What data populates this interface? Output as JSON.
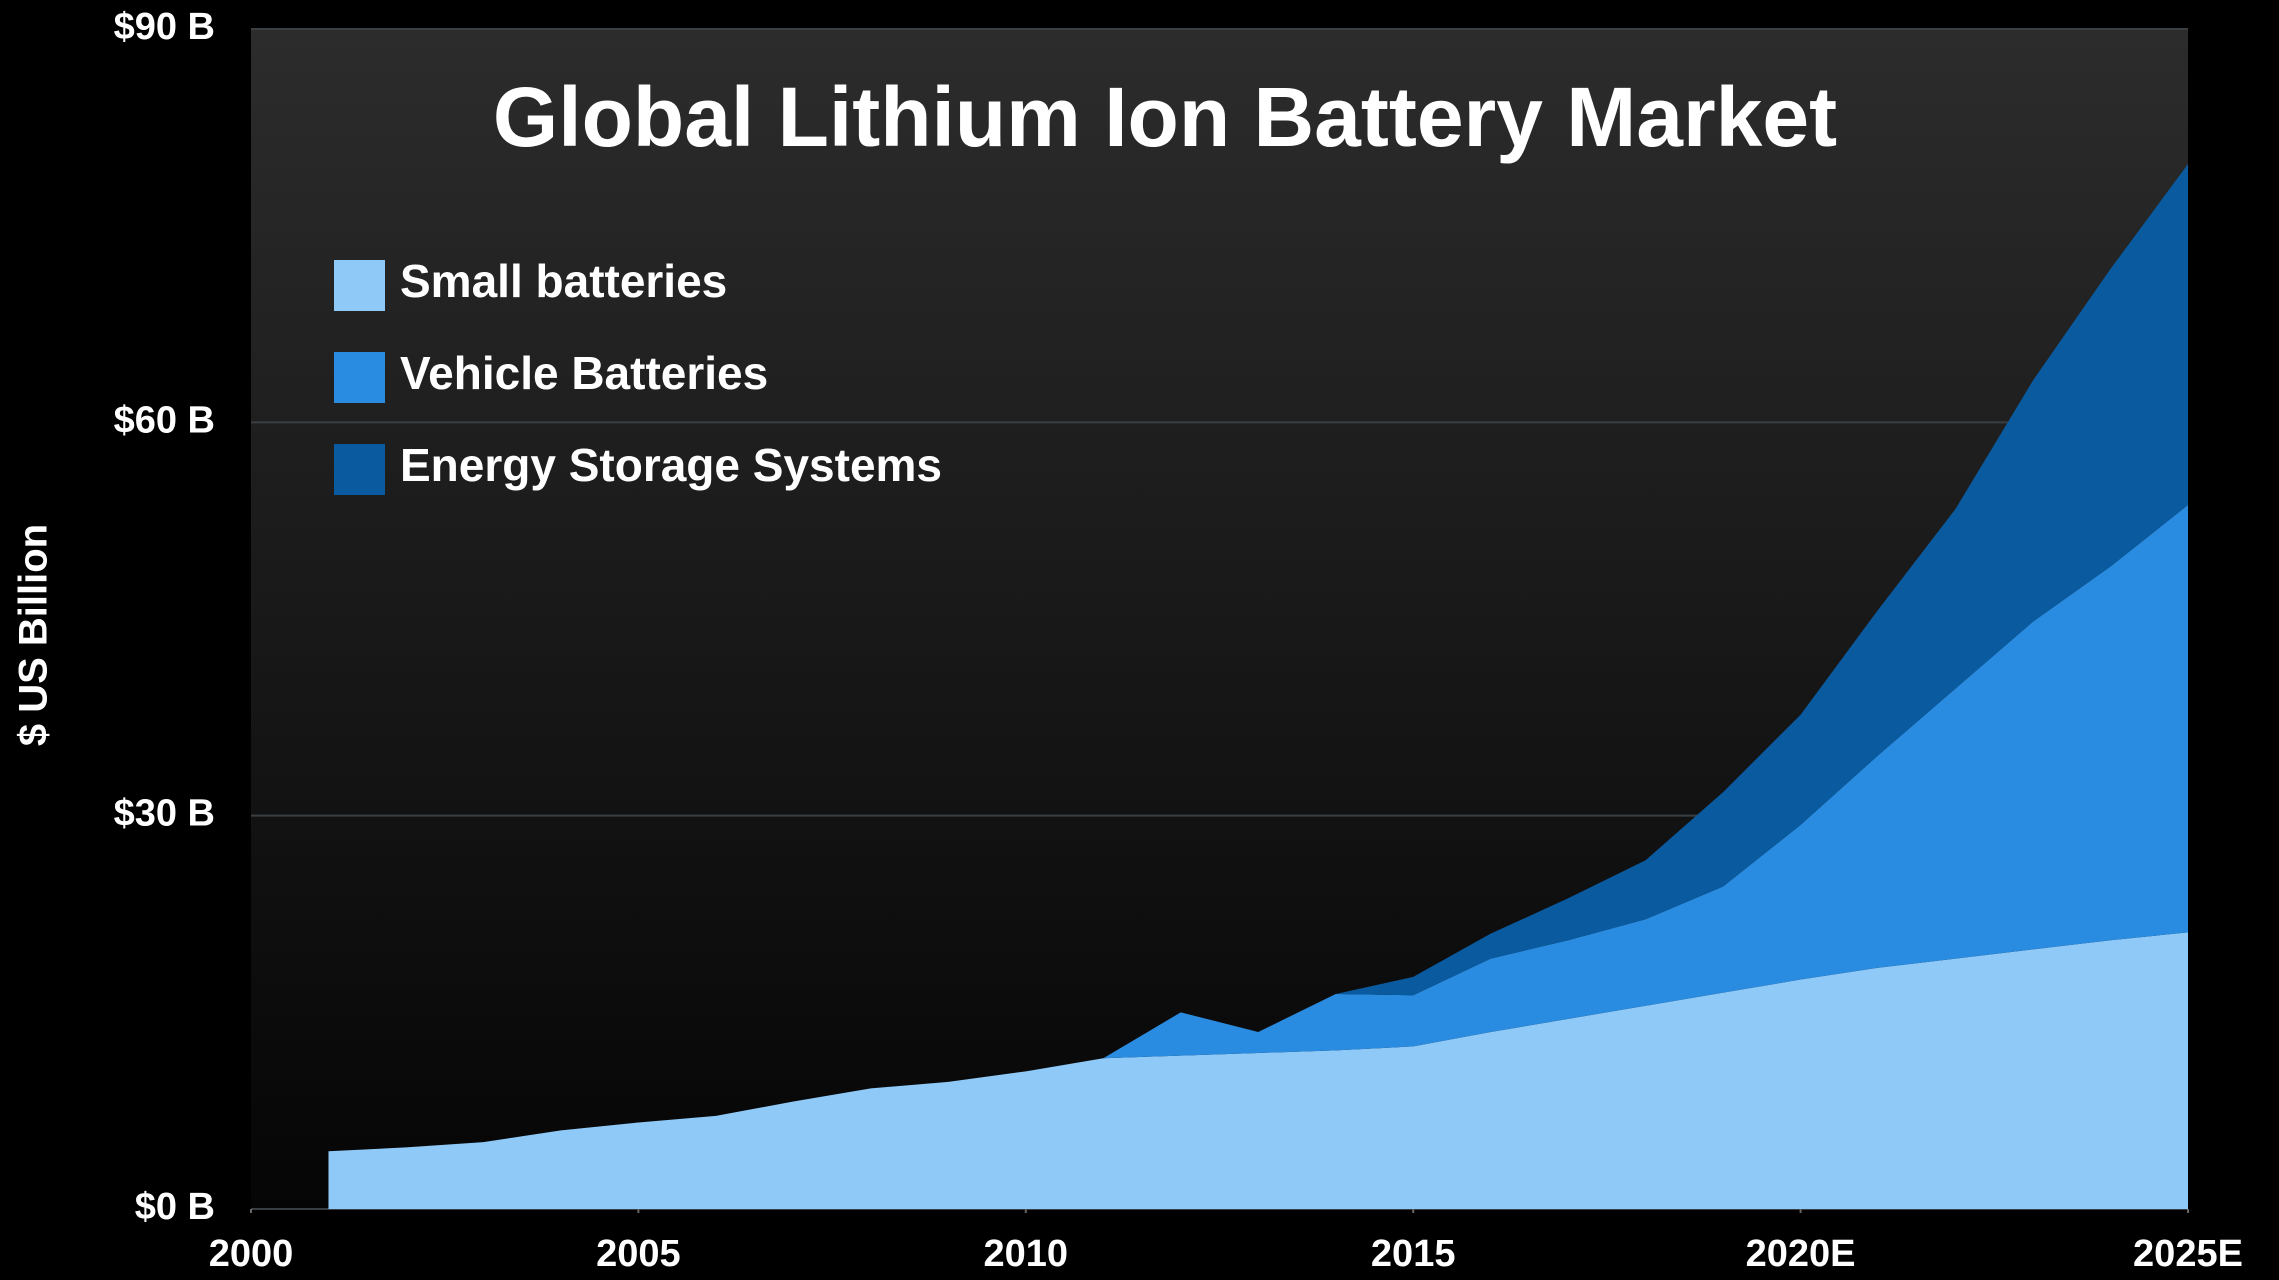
{
  "chart_data": {
    "type": "stacked_area",
    "title": "Global Lithium Ion Battery Market",
    "ylabel": "$ US Billion",
    "x": [
      2001,
      2002,
      2003,
      2004,
      2005,
      2006,
      2007,
      2008,
      2009,
      2010,
      2011,
      2012,
      2013,
      2014,
      2015,
      2016,
      2017,
      2018,
      2019,
      2020,
      2021,
      2022,
      2023,
      2024,
      2025
    ],
    "series": [
      {
        "name": "Small batteries",
        "color": "#8ec9f8",
        "values": [
          4.4,
          4.7,
          5.1,
          6.0,
          6.6,
          7.1,
          8.2,
          9.2,
          9.7,
          10.5,
          11.5,
          11.7,
          11.9,
          12.1,
          12.4,
          13.5,
          14.5,
          15.5,
          16.5,
          17.5,
          18.4,
          19.1,
          19.8,
          20.5,
          21.1
        ]
      },
      {
        "name": "Vehicle Batteries",
        "color": "#2a8ce0",
        "values": [
          0,
          0,
          0,
          0,
          0,
          0,
          0,
          0,
          0,
          0,
          0,
          3.3,
          1.6,
          4.3,
          3.9,
          5.6,
          6.0,
          6.6,
          8.1,
          11.8,
          16.2,
          20.6,
          25.0,
          28.5,
          32.6
        ]
      },
      {
        "name": "Energy Storage Systems",
        "color": "#0a5aa0",
        "values": [
          0,
          0,
          0,
          0,
          0,
          0,
          0,
          0,
          0,
          0,
          0,
          0,
          0,
          0,
          1.4,
          1.9,
          3.2,
          4.5,
          7.2,
          8.4,
          11.1,
          13.7,
          18.4,
          22.7,
          26.0
        ]
      }
    ],
    "xlim": [
      2000,
      2025
    ],
    "xticks": [
      2000,
      2005,
      2010,
      2015,
      {
        "value": 2020,
        "label": "2020E"
      },
      {
        "value": 2025,
        "label": "2025E"
      }
    ],
    "ylim": [
      0,
      90
    ],
    "yticks": [
      {
        "value": 0,
        "label": "$0 B"
      },
      {
        "value": 30,
        "label": "$30 B"
      },
      {
        "value": 60,
        "label": "$60 B"
      },
      {
        "value": 90,
        "label": "$90 B"
      }
    ],
    "grid": true
  }
}
